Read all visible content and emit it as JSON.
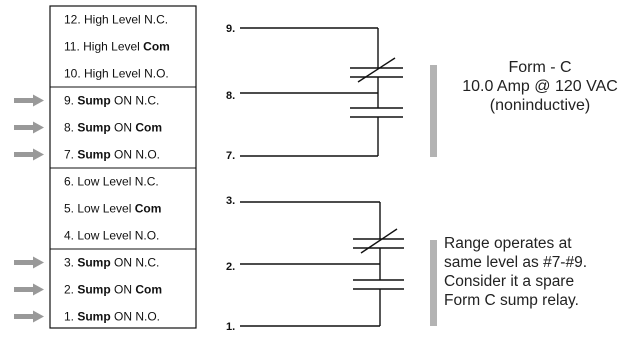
{
  "terminal_block": {
    "rows": [
      {
        "number": "12.",
        "pre": "High Level",
        "emph": "",
        "post": "N.C.",
        "arrow": false
      },
      {
        "number": "11.",
        "pre": "High Level",
        "emph": "Com",
        "post": "",
        "arrow": false
      },
      {
        "number": "10.",
        "pre": "High Level",
        "emph": "",
        "post": "N.O.",
        "arrow": false
      },
      {
        "number": "9.",
        "pre": "",
        "emph": "Sump",
        "post": "ON N.C.",
        "arrow": true
      },
      {
        "number": "8.",
        "pre": "",
        "emph": "Sump",
        "post": "ON Com",
        "post_bold_tail": true,
        "arrow": true
      },
      {
        "number": "7.",
        "pre": "",
        "emph": "Sump",
        "post": "ON N.O.",
        "arrow": true
      },
      {
        "number": "6.",
        "pre": "Low Level",
        "emph": "",
        "post": "N.C.",
        "arrow": false
      },
      {
        "number": "5.",
        "pre": "Low Level",
        "emph": "Com",
        "post": "",
        "arrow": false
      },
      {
        "number": "4.",
        "pre": "Low Level",
        "emph": "",
        "post": "N.O.",
        "arrow": false
      },
      {
        "number": "3.",
        "pre": "",
        "emph": "Sump",
        "post": "ON N.C.",
        "arrow": true
      },
      {
        "number": "2.",
        "pre": "",
        "emph": "Sump",
        "post": "ON Com",
        "post_bold_tail": true,
        "arrow": true
      },
      {
        "number": "1.",
        "pre": "",
        "emph": "Sump",
        "post": "ON N.O.",
        "arrow": true
      }
    ]
  },
  "relay_top": {
    "labels": [
      "9.",
      "8.",
      "7."
    ]
  },
  "relay_bottom": {
    "labels": [
      "3.",
      "2.",
      "1."
    ]
  },
  "note_form_c": {
    "lines": [
      "Form - C",
      "10.0 Amp @ 120 VAC",
      "(noninductive)"
    ]
  },
  "note_range": {
    "lines": [
      "Range operates at",
      "same level as #7-#9.",
      "Consider it a spare",
      "Form C sump relay."
    ]
  },
  "colors": {
    "arrow": "#999999",
    "note_bar": "#b3b3b3",
    "line": "#111111"
  }
}
